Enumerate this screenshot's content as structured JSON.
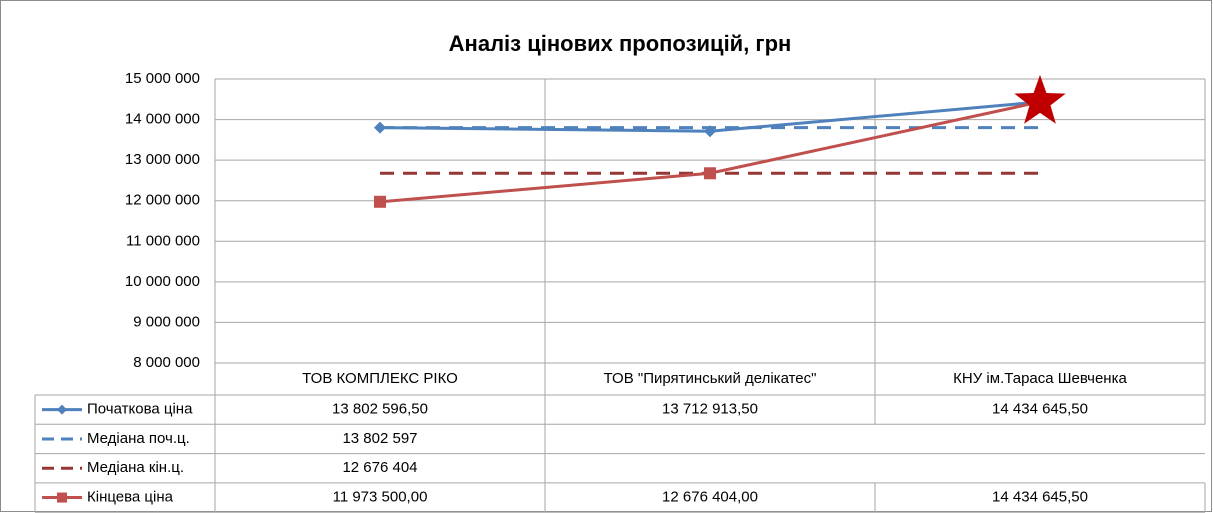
{
  "chart_data": {
    "type": "line",
    "title": "Аналіз цінових пропозицій, грн",
    "categories": [
      "ТОВ КОМПЛЕКС РІКО",
      "ТОВ \"Пирятинський делікатес\"",
      "КНУ ім.Тараса Шевченка"
    ],
    "series": [
      {
        "name": "Початкова ціна",
        "color": "#4f81bd",
        "marker": "diamond",
        "dashed": false,
        "values": [
          13802596.5,
          13712913.5,
          14434645.5
        ],
        "value_labels": [
          "13 802 596,50",
          "13 712 913,50",
          "14 434 645,50"
        ]
      },
      {
        "name": "Медіана поч.ц.",
        "color": "#4f81bd",
        "marker": null,
        "dashed": true,
        "values": [
          13802597,
          null,
          null
        ],
        "value_labels": [
          "13 802 597",
          null,
          null
        ]
      },
      {
        "name": "Медіана кін.ц.",
        "color": "#953735",
        "marker": null,
        "dashed": true,
        "values": [
          12676404,
          null,
          null
        ],
        "value_labels": [
          "12 676 404",
          null,
          null
        ]
      },
      {
        "name": "Кінцева ціна",
        "color": "#c0504d",
        "marker": "square",
        "dashed": false,
        "values": [
          11973500,
          12676404,
          14434645.5
        ],
        "value_labels": [
          "11 973 500,00",
          "12 676 404,00",
          "14 434 645,50"
        ]
      }
    ],
    "star_marker": {
      "series": 3,
      "index": 2,
      "color": "#c00000"
    },
    "ylim": [
      8000000,
      15000000
    ],
    "yticks": [
      {
        "value": 8000000,
        "label": "8 000 000"
      },
      {
        "value": 9000000,
        "label": "9 000 000"
      },
      {
        "value": 10000000,
        "label": "10 000 000"
      },
      {
        "value": 11000000,
        "label": "11 000 000"
      },
      {
        "value": 12000000,
        "label": "12 000 000"
      },
      {
        "value": 13000000,
        "label": "13 000 000"
      },
      {
        "value": 14000000,
        "label": "14 000 000"
      },
      {
        "value": 15000000,
        "label": "15 000 000"
      }
    ],
    "grid": true
  }
}
